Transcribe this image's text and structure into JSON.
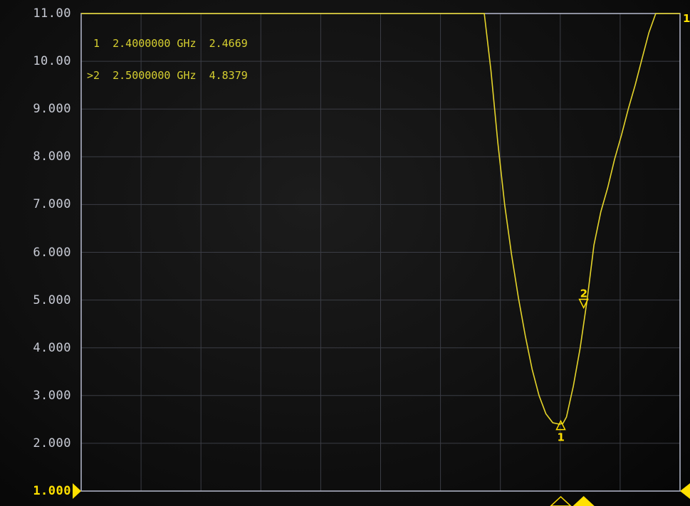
{
  "window": {
    "type": "network-analyzer-display"
  },
  "y_axis": {
    "labels": [
      "11.00",
      "10.00",
      "9.000",
      "8.000",
      "7.000",
      "6.000",
      "5.000",
      "4.000",
      "3.000",
      "2.000",
      "1.000"
    ],
    "reference_value": "1.000"
  },
  "marker_readout": [
    {
      "prefix": " 1",
      "freq": "2.4000000 GHz",
      "value": "2.4669"
    },
    {
      "prefix": ">2",
      "freq": "2.5000000 GHz",
      "value": "4.8379"
    }
  ],
  "markers": [
    {
      "id": "1",
      "label": "1",
      "freq_ghz": 2.4,
      "value": 2.4669,
      "active": false
    },
    {
      "id": "2",
      "label": "2",
      "freq_ghz": 2.5,
      "value": 4.8379,
      "active": true
    }
  ],
  "right_edge_label": "1",
  "colors": {
    "trace": "#e6d52a",
    "grid": "#3b3d45",
    "frame": "#b7bbcf",
    "marker": "#ffe000",
    "axis_text": "#c9ccd6"
  },
  "chart_data": {
    "type": "line",
    "title": "",
    "xlabel": "",
    "ylabel": "",
    "ylim": [
      1,
      11
    ],
    "xlim_ghz": [
      0.305,
      2.921
    ],
    "grid": true,
    "series": [
      {
        "x": [
          0.305,
          2.066,
          2.095,
          2.125,
          2.155,
          2.185,
          2.215,
          2.245,
          2.275,
          2.305,
          2.335,
          2.365,
          2.395,
          2.41,
          2.425,
          2.455,
          2.485,
          2.515,
          2.545,
          2.575,
          2.605,
          2.635,
          2.665,
          2.695,
          2.725,
          2.755,
          2.785,
          2.815,
          2.845,
          2.87,
          2.921
        ],
        "y": [
          11,
          11,
          9.8,
          8.3,
          7.0,
          5.95,
          5.05,
          4.25,
          3.55,
          3.0,
          2.62,
          2.43,
          2.4,
          2.42,
          2.55,
          3.2,
          4.0,
          5.0,
          6.15,
          6.85,
          7.35,
          7.95,
          8.45,
          9.0,
          9.5,
          10.05,
          10.6,
          11,
          11,
          11,
          11
        ]
      }
    ]
  }
}
